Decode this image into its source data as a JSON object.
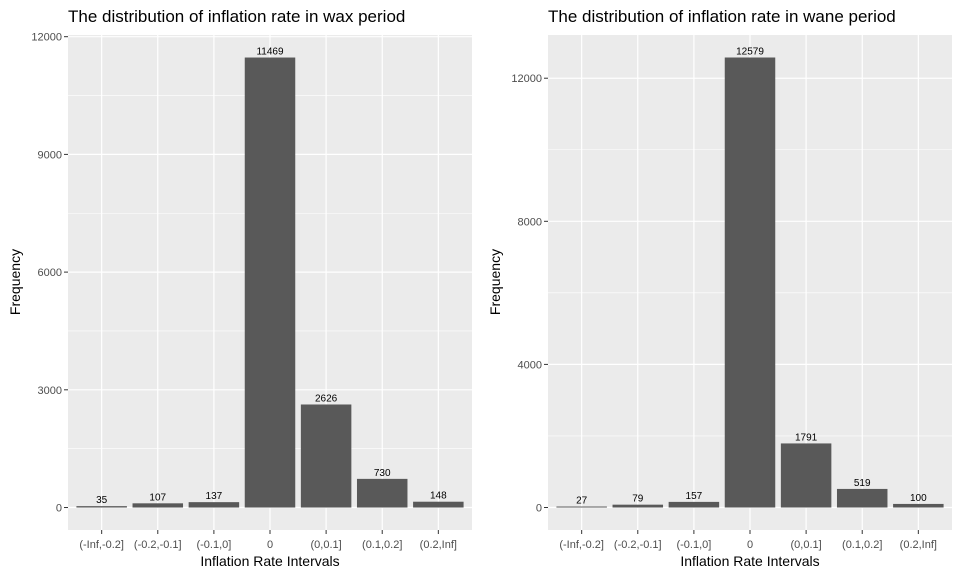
{
  "chart_data": [
    {
      "type": "bar",
      "title": "The distribution of inflation rate in wax period",
      "xlabel": "Inflation Rate Intervals",
      "ylabel": "Frequency",
      "categories": [
        "(-Inf,-0.2]",
        "(-0.2,-0.1]",
        "(-0.1,0]",
        "0",
        "(0,0.1]",
        "(0.1,0.2]",
        "(0.2,Inf]"
      ],
      "values": [
        35,
        107,
        137,
        11469,
        2626,
        730,
        148
      ],
      "data_labels": [
        "35",
        "107",
        "137",
        "11469",
        "2626",
        "730",
        "148"
      ],
      "y_ticks": [
        0,
        3000,
        6000,
        9000,
        12000
      ],
      "y_tick_labels": [
        "0",
        "3000",
        "6000",
        "9000",
        "12000"
      ],
      "ylim": [
        -573,
        12043
      ],
      "grid": true,
      "colors": {
        "bar": "#595959",
        "panel": "#ebebeb",
        "grid": "#ffffff"
      }
    },
    {
      "type": "bar",
      "title": "The distribution of inflation rate in wane period",
      "xlabel": "Inflation Rate Intervals",
      "ylabel": "Frequency",
      "categories": [
        "(-Inf,-0.2]",
        "(-0.2,-0.1]",
        "(-0.1,0]",
        "0",
        "(0,0.1]",
        "(0.1,0.2]",
        "(0.2,Inf]"
      ],
      "values": [
        27,
        79,
        157,
        12579,
        1791,
        519,
        100
      ],
      "data_labels": [
        "27",
        "79",
        "157",
        "12579",
        "1791",
        "519",
        "100"
      ],
      "y_ticks": [
        0,
        4000,
        8000,
        12000
      ],
      "y_tick_labels": [
        "0",
        "4000",
        "8000",
        "12000"
      ],
      "ylim": [
        -629,
        13208
      ],
      "grid": true,
      "colors": {
        "bar": "#595959",
        "panel": "#ebebeb",
        "grid": "#ffffff"
      }
    }
  ]
}
